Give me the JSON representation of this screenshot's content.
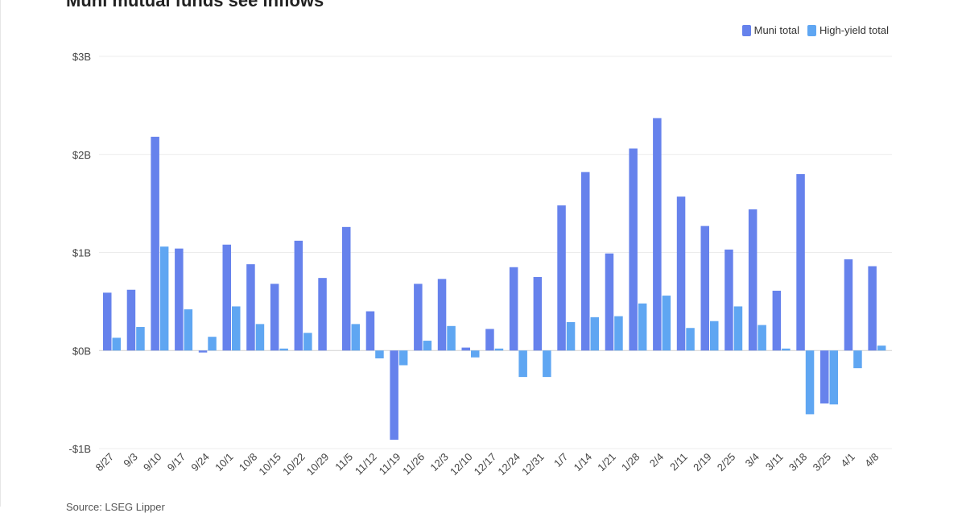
{
  "title": "Muni mutual funds see inflows",
  "source": "Source: LSEG Lipper",
  "colors": {
    "muni": "#6682ec",
    "high_yield": "#5fa6f2",
    "grid": "#ececec",
    "axis": "#d0d0d0"
  },
  "legend": {
    "muni_label": "Muni total",
    "high_yield_label": "High-yield total"
  },
  "chart_data": {
    "type": "bar",
    "title": "Muni mutual funds see inflows",
    "xlabel": "",
    "ylabel": "",
    "ylim": [
      -1,
      3
    ],
    "y_ticks": [
      3,
      2,
      1,
      0,
      -1
    ],
    "y_tick_labels": [
      "$3B",
      "$2B",
      "$1B",
      "$0B",
      "-$1B"
    ],
    "grid": true,
    "legend_position": "top-right",
    "categories": [
      "8/27",
      "9/3",
      "9/10",
      "9/17",
      "9/24",
      "10/1",
      "10/8",
      "10/15",
      "10/22",
      "10/29",
      "11/5",
      "11/12",
      "11/19",
      "11/26",
      "12/3",
      "12/10",
      "12/17",
      "12/24",
      "12/31",
      "1/7",
      "1/14",
      "1/21",
      "1/28",
      "2/4",
      "2/11",
      "2/19",
      "2/25",
      "3/4",
      "3/11",
      "3/18",
      "3/25",
      "4/1",
      "4/8"
    ],
    "series": [
      {
        "name": "Muni total",
        "values": [
          0.59,
          0.62,
          2.18,
          1.04,
          -0.02,
          1.08,
          0.88,
          0.68,
          1.12,
          0.74,
          1.26,
          0.4,
          -0.91,
          0.68,
          0.73,
          0.03,
          0.22,
          0.85,
          0.75,
          1.48,
          1.82,
          0.99,
          2.06,
          2.37,
          1.57,
          1.27,
          1.03,
          1.44,
          0.61,
          1.8,
          -0.54,
          0.93,
          0.86
        ]
      },
      {
        "name": "High-yield total",
        "values": [
          0.13,
          0.24,
          1.06,
          0.42,
          0.14,
          0.45,
          0.27,
          0.02,
          0.18,
          0.0,
          0.27,
          -0.08,
          -0.15,
          0.1,
          0.25,
          -0.07,
          0.02,
          -0.27,
          -0.27,
          0.29,
          0.34,
          0.35,
          0.48,
          0.56,
          0.23,
          0.3,
          0.45,
          0.26,
          0.02,
          -0.65,
          -0.55,
          -0.18,
          0.05
        ]
      }
    ]
  }
}
